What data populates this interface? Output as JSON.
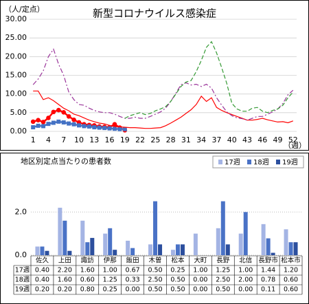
{
  "chart_data": [
    {
      "type": "line",
      "title": "新型コロナウイルス感染症",
      "y_label": "（人/定点）",
      "x_label": "（週）",
      "x": [
        1,
        2,
        3,
        4,
        5,
        6,
        7,
        8,
        9,
        10,
        11,
        12,
        13,
        14,
        15,
        16,
        17,
        18,
        19,
        20,
        21,
        22,
        23,
        24,
        25,
        26,
        27,
        28,
        29,
        30,
        31,
        32,
        33,
        34,
        35,
        36,
        37,
        38,
        39,
        40,
        41,
        42,
        43,
        44,
        45,
        46,
        47,
        48,
        49,
        50,
        51,
        52
      ],
      "xlim": [
        0.3,
        52.7
      ],
      "xticks": [
        1,
        4,
        7,
        10,
        13,
        16,
        19,
        22,
        25,
        28,
        31,
        34,
        37,
        40,
        43,
        46,
        49,
        52
      ],
      "ylim": [
        0,
        30
      ],
      "yticks": [
        {
          "value": 0,
          "label": "0.00"
        },
        {
          "value": 5,
          "label": "5.00"
        },
        {
          "value": 10,
          "label": "10.00"
        },
        {
          "value": 15,
          "label": "15.00"
        },
        {
          "value": 20,
          "label": "20.00"
        },
        {
          "value": 25,
          "label": "25.00"
        },
        {
          "value": 30,
          "label": "30.00"
        }
      ],
      "grid": true,
      "series": [
        {
          "color": "#ff0000",
          "style": "solid",
          "width": 2.5,
          "marker": "circle",
          "values": [
            2.6,
            3.0,
            2.5,
            3.6,
            5.2,
            5.7,
            5.1,
            4.0,
            3.1,
            2.4,
            1.9,
            1.7,
            1.6,
            1.3,
            1.2,
            1.1,
            1.9,
            1.0,
            0.3,
            null,
            null,
            null,
            null,
            null,
            null,
            null,
            null,
            null,
            null,
            null,
            null,
            null,
            null,
            null,
            null,
            null,
            null,
            null,
            null,
            null,
            null,
            null,
            null,
            null,
            null,
            null,
            null,
            null,
            null,
            null,
            null,
            null
          ]
        },
        {
          "color": "#4472c4",
          "style": "solid",
          "width": 2.5,
          "marker": "square",
          "values": [
            1.1,
            1.5,
            1.4,
            2.0,
            2.3,
            2.6,
            2.4,
            2.1,
            1.9,
            1.6,
            1.4,
            1.3,
            1.1,
            1.0,
            0.9,
            0.8,
            0.7,
            0.6,
            0.6,
            null,
            null,
            null,
            null,
            null,
            null,
            null,
            null,
            null,
            null,
            null,
            null,
            null,
            null,
            null,
            null,
            null,
            null,
            null,
            null,
            null,
            null,
            null,
            null,
            null,
            null,
            null,
            null,
            null,
            null,
            null,
            null,
            null
          ]
        },
        {
          "color": "#ff0000",
          "style": "solid",
          "width": 1.2,
          "values": [
            10.8,
            10.8,
            8.5,
            9.0,
            8.2,
            7.2,
            6.2,
            5.5,
            4.6,
            4.2,
            3.6,
            3.0,
            2.6,
            2.2,
            2.0,
            1.6,
            1.3,
            1.2,
            1.1,
            1.0,
            1.0,
            0.9,
            0.8,
            0.8,
            0.9,
            1.0,
            1.5,
            2.2,
            3.0,
            3.8,
            4.8,
            5.8,
            7.2,
            9.4,
            8.0,
            9.0,
            6.4,
            5.6,
            5.0,
            4.5,
            4.0,
            3.5,
            3.0,
            3.0,
            3.2,
            3.5,
            3.1,
            2.8,
            2.5,
            2.6,
            2.3,
            2.8
          ]
        },
        {
          "color": "#993399",
          "style": "dashdot",
          "width": 1.2,
          "values": [
            12.5,
            14.0,
            16.2,
            20.0,
            22.0,
            18.0,
            15.0,
            10.5,
            8.5,
            7.2,
            7.0,
            6.2,
            5.6,
            5.2,
            5.0,
            5.0,
            4.6,
            4.0,
            3.5,
            3.5,
            3.8,
            3.5,
            3.5,
            4.0,
            4.6,
            5.2,
            6.2,
            8.0,
            10.2,
            12.5,
            13.0,
            12.4,
            12.6,
            12.0,
            12.6,
            11.6,
            9.0,
            7.0,
            5.2,
            4.2,
            3.6,
            3.4,
            3.0,
            3.5,
            4.0,
            4.0,
            4.6,
            5.2,
            6.0,
            7.5,
            9.8,
            11.0
          ]
        },
        {
          "color": "#339933",
          "style": "dashed",
          "width": 1.2,
          "values": [
            null,
            null,
            null,
            null,
            null,
            null,
            null,
            null,
            null,
            null,
            null,
            null,
            null,
            null,
            null,
            null,
            null,
            null,
            3.5,
            4.2,
            4.6,
            5.0,
            4.5,
            4.8,
            5.5,
            6.0,
            6.6,
            8.0,
            10.0,
            12.0,
            13.2,
            13.6,
            16.0,
            19.0,
            22.5,
            24.0,
            21.0,
            17.0,
            12.8,
            7.5,
            6.0,
            5.4,
            5.4,
            6.2,
            6.4,
            5.4,
            5.0,
            5.6,
            6.0,
            7.0,
            9.0,
            10.5
          ]
        }
      ]
    },
    {
      "type": "bar",
      "title": "地区別定点当たりの患者数",
      "categories": [
        "佐久",
        "上田",
        "諏訪",
        "伊那",
        "飯田",
        "木曽",
        "松本",
        "大町",
        "長野",
        "北信",
        "長野市",
        "松本市"
      ],
      "ylim": [
        0,
        3.7
      ],
      "yticks": [
        {
          "value": 0,
          "label": "0.0"
        },
        {
          "value": 2,
          "label": "2.0"
        }
      ],
      "grid": true,
      "series": [
        {
          "name": "17週",
          "color": "#a4b4e4",
          "values": [
            0.4,
            2.2,
            1.6,
            1.0,
            0.67,
            0.5,
            0.25,
            1.0,
            1.25,
            1.0,
            1.44,
            1.2
          ],
          "value_labels": [
            "0.40",
            "2.20",
            "1.60",
            "1.00",
            "0.67",
            "0.50",
            "0.25",
            "1.00",
            "1.25",
            "1.00",
            "1.44",
            "1.20"
          ]
        },
        {
          "name": "18週",
          "color": "#4a72c6",
          "values": [
            0.4,
            1.6,
            0.6,
            1.25,
            0.33,
            2.5,
            0.5,
            0,
            2.5,
            2.0,
            0.78,
            0.6
          ],
          "value_labels": [
            "0.40",
            "1.60",
            "0.60",
            "1.25",
            "0.33",
            "2.50",
            "0.50",
            "0.00",
            "2.50",
            "2.00",
            "0.78",
            "0.60"
          ]
        },
        {
          "name": "19週",
          "color": "#2c4f9e",
          "values": [
            0.2,
            0.2,
            0.8,
            0.25,
            0,
            0.5,
            0.5,
            0,
            0.5,
            0,
            0.11,
            0.6
          ],
          "value_labels": [
            "0.20",
            "0.20",
            "0.80",
            "0.25",
            "0.00",
            "0.50",
            "0.50",
            "0.00",
            "0.50",
            "0.00",
            "0.11",
            "0.60"
          ]
        }
      ]
    }
  ]
}
